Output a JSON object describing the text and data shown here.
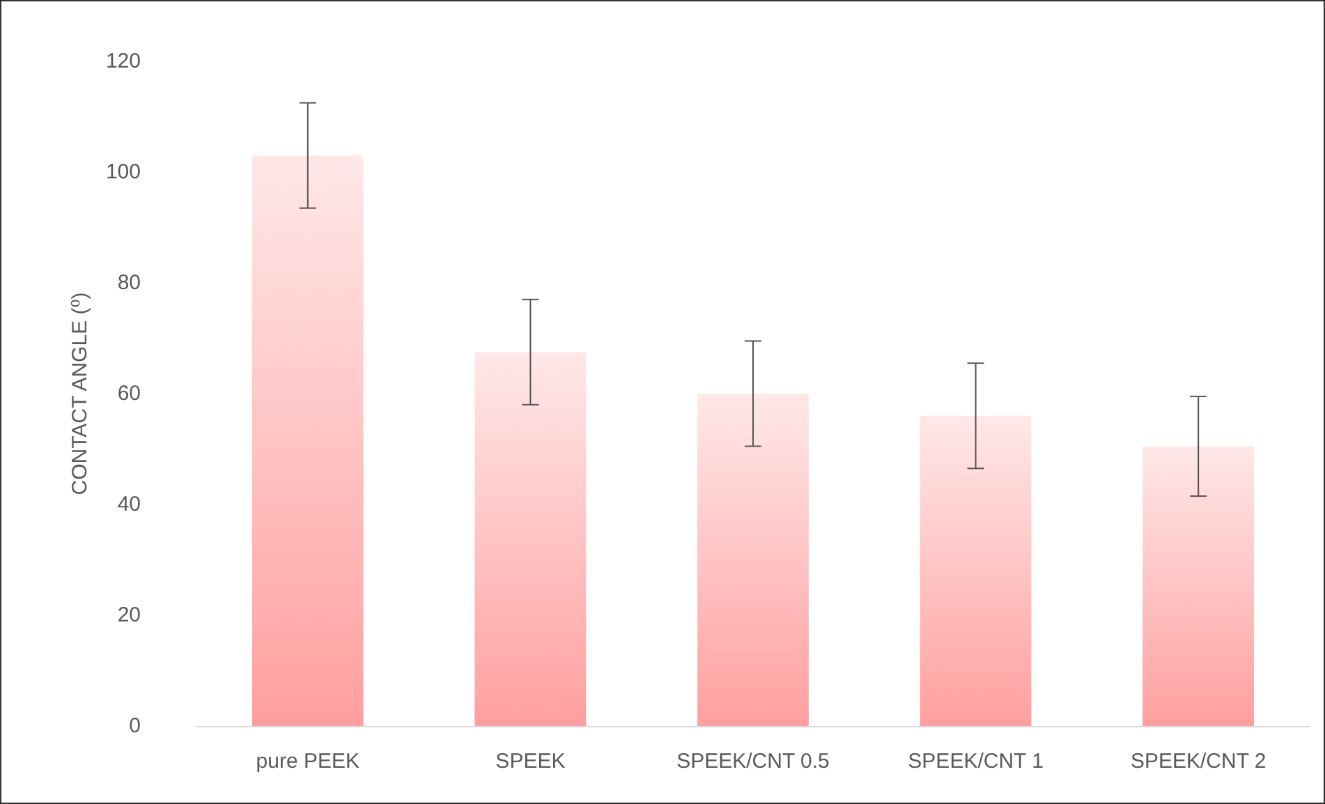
{
  "chart_data": {
    "type": "bar",
    "ylabel": "CONTACT ANGLE (⁰)",
    "categories": [
      "pure PEEK",
      "SPEEK",
      "SPEEK/CNT 0.5",
      "SPEEK/CNT 1",
      "SPEEK/CNT 2"
    ],
    "values": [
      103,
      67.5,
      60,
      56,
      50.5
    ],
    "errors": [
      9.5,
      9.5,
      9.5,
      9.5,
      9
    ],
    "color": "#ff9f9f",
    "ylim": [
      0,
      120
    ],
    "yticks": [
      0,
      20,
      40,
      60,
      80,
      100,
      120
    ],
    "grid": false
  }
}
